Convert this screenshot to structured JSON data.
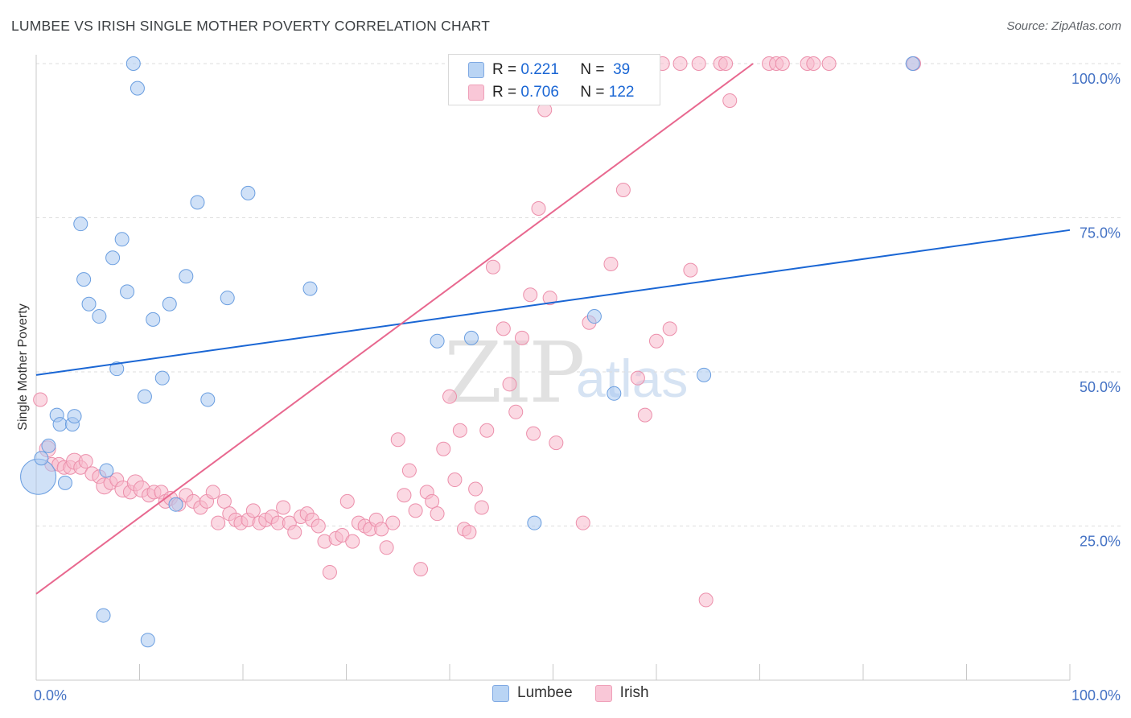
{
  "header": {
    "title": "LUMBEE VS IRISH SINGLE MOTHER POVERTY CORRELATION CHART",
    "source": "Source: ZipAtlas.com"
  },
  "legend": {
    "lumbee": {
      "r_label": "R =",
      "r_value": "0.221",
      "n_label": "N =",
      "n_value": "39"
    },
    "irish": {
      "r_label": "R =",
      "r_value": "0.706",
      "n_label": "N =",
      "n_value": "122"
    }
  },
  "bottom_legend": {
    "lumbee": "Lumbee",
    "irish": "Irish"
  },
  "watermark": {
    "zip": "ZIP",
    "atlas": "atlas"
  },
  "colors": {
    "lumbee_fill": "#a9c8f0",
    "lumbee_stroke": "#6a9ee0",
    "lumbee_line": "#1a66d4",
    "irish_fill": "#f7b9cc",
    "irish_stroke": "#ec8fab",
    "irish_line": "#e8688f",
    "tick_text": "#4472c4"
  },
  "chart_data": {
    "type": "scatter",
    "title": "LUMBEE VS IRISH SINGLE MOTHER POVERTY CORRELATION CHART",
    "ylabel": "Single Mother Poverty",
    "xlabel": "",
    "xlim": [
      0,
      100
    ],
    "ylim": [
      0,
      100
    ],
    "x_tick_labels": [
      "0.0%",
      "100.0%"
    ],
    "y_tick_labels": [
      "25.0%",
      "50.0%",
      "75.0%",
      "100.0%"
    ],
    "y_ticks": [
      25,
      50,
      75,
      100
    ],
    "grid": "horizontal dashed",
    "legend_position": "top-center",
    "series": [
      {
        "name": "Lumbee",
        "points": [
          [
            0.2,
            33,
            3
          ],
          [
            0.5,
            36,
            1
          ],
          [
            1.2,
            38,
            1
          ],
          [
            2,
            43,
            1
          ],
          [
            2.3,
            41.5,
            1
          ],
          [
            2.8,
            32,
            1
          ],
          [
            3.5,
            41.5,
            1
          ],
          [
            3.7,
            42.8,
            1
          ],
          [
            4.3,
            74,
            1
          ],
          [
            4.6,
            65,
            1
          ],
          [
            5.1,
            61,
            1
          ],
          [
            6.1,
            59,
            1
          ],
          [
            6.5,
            10.5,
            1
          ],
          [
            6.8,
            34,
            1
          ],
          [
            7.4,
            68.5,
            1
          ],
          [
            7.8,
            50.5,
            1
          ],
          [
            8.3,
            71.5,
            1
          ],
          [
            8.8,
            63,
            1
          ],
          [
            9.4,
            100,
            1
          ],
          [
            9.8,
            96,
            1
          ],
          [
            10.5,
            46,
            1
          ],
          [
            10.8,
            6.5,
            1
          ],
          [
            11.3,
            58.5,
            1
          ],
          [
            12.2,
            49,
            1
          ],
          [
            12.9,
            61,
            1
          ],
          [
            13.5,
            28.5,
            1
          ],
          [
            14.5,
            65.5,
            1
          ],
          [
            15.6,
            77.5,
            1
          ],
          [
            16.6,
            45.5,
            1
          ],
          [
            18.5,
            62,
            1
          ],
          [
            20.5,
            79,
            1
          ],
          [
            26.5,
            63.5,
            1
          ],
          [
            38.8,
            55,
            1
          ],
          [
            42.1,
            55.5,
            1
          ],
          [
            48.2,
            25.5,
            1
          ],
          [
            54,
            59,
            1
          ],
          [
            55.9,
            46.5,
            1
          ],
          [
            64.6,
            49.5,
            1
          ],
          [
            84.8,
            100,
            1
          ]
        ]
      },
      {
        "name": "Irish",
        "points": [
          [
            0.4,
            45.5,
            1
          ],
          [
            1.1,
            37.5,
            2
          ],
          [
            1.5,
            35,
            1
          ],
          [
            2.2,
            35,
            1
          ],
          [
            2.7,
            34.5,
            1
          ],
          [
            3.3,
            34.5,
            1
          ],
          [
            3.7,
            35.5,
            2
          ],
          [
            4.3,
            34.5,
            1
          ],
          [
            4.8,
            35.5,
            1
          ],
          [
            5.4,
            33.5,
            1
          ],
          [
            6.1,
            33,
            1
          ],
          [
            6.6,
            31.5,
            2
          ],
          [
            7.2,
            32,
            1
          ],
          [
            7.8,
            32.5,
            1
          ],
          [
            8.4,
            31,
            2
          ],
          [
            9.1,
            30.5,
            1
          ],
          [
            9.6,
            32,
            2
          ],
          [
            10.2,
            31,
            2
          ],
          [
            10.9,
            30,
            1
          ],
          [
            11.4,
            30.5,
            1
          ],
          [
            12.1,
            30.5,
            1
          ],
          [
            12.5,
            29,
            1
          ],
          [
            13,
            29.5,
            1
          ],
          [
            13.8,
            28.5,
            1
          ],
          [
            14.5,
            30,
            1
          ],
          [
            15.2,
            29,
            1
          ],
          [
            15.9,
            28,
            1
          ],
          [
            16.5,
            29,
            1
          ],
          [
            17.1,
            30.5,
            1
          ],
          [
            17.6,
            25.5,
            1
          ],
          [
            18.2,
            29,
            1
          ],
          [
            18.7,
            27,
            1
          ],
          [
            19.3,
            26,
            1
          ],
          [
            19.8,
            25.5,
            1
          ],
          [
            20.5,
            26,
            1
          ],
          [
            21,
            27.5,
            1
          ],
          [
            21.6,
            25.5,
            1
          ],
          [
            22.2,
            26,
            1
          ],
          [
            22.8,
            26.5,
            1
          ],
          [
            23.4,
            25.5,
            1
          ],
          [
            23.9,
            28,
            1
          ],
          [
            24.5,
            25.5,
            1
          ],
          [
            25,
            24,
            1
          ],
          [
            25.6,
            26.5,
            1
          ],
          [
            26.2,
            27,
            1
          ],
          [
            26.7,
            26,
            1
          ],
          [
            27.3,
            25,
            1
          ],
          [
            27.9,
            22.5,
            1
          ],
          [
            28.4,
            17.5,
            1
          ],
          [
            29,
            23,
            1
          ],
          [
            29.6,
            23.5,
            1
          ],
          [
            30.1,
            29,
            1
          ],
          [
            30.6,
            22.5,
            1
          ],
          [
            31.2,
            25.5,
            1
          ],
          [
            31.8,
            25,
            1
          ],
          [
            32.3,
            24.5,
            1
          ],
          [
            32.9,
            26,
            1
          ],
          [
            33.4,
            24.5,
            1
          ],
          [
            33.9,
            21.5,
            1
          ],
          [
            34.5,
            25.5,
            1
          ],
          [
            35,
            39,
            1
          ],
          [
            35.6,
            30,
            1
          ],
          [
            36.1,
            34,
            1
          ],
          [
            36.7,
            27.5,
            1
          ],
          [
            37.2,
            18,
            1
          ],
          [
            37.8,
            30.5,
            1
          ],
          [
            38.3,
            29,
            1
          ],
          [
            38.8,
            27,
            1
          ],
          [
            39.4,
            37.5,
            1
          ],
          [
            40,
            46,
            1
          ],
          [
            40.5,
            32.5,
            1
          ],
          [
            41,
            40.5,
            1
          ],
          [
            41.4,
            24.5,
            1
          ],
          [
            41.9,
            24,
            1
          ],
          [
            42.5,
            31,
            1
          ],
          [
            43.1,
            28,
            1
          ],
          [
            43.6,
            40.5,
            1
          ],
          [
            44.2,
            67,
            1
          ],
          [
            45.2,
            57,
            1
          ],
          [
            45.8,
            48,
            1
          ],
          [
            46.4,
            43.5,
            1
          ],
          [
            47,
            55.5,
            1
          ],
          [
            47.8,
            62.5,
            1
          ],
          [
            48.1,
            40,
            1
          ],
          [
            48.6,
            76.5,
            1
          ],
          [
            49.2,
            92.5,
            1
          ],
          [
            49.7,
            62,
            1
          ],
          [
            50.3,
            38.5,
            1
          ],
          [
            50.8,
            100,
            1
          ],
          [
            51.4,
            100,
            1
          ],
          [
            51.9,
            100,
            1
          ],
          [
            52.4,
            100,
            1
          ],
          [
            52.9,
            25.5,
            1
          ],
          [
            53.5,
            58,
            1
          ],
          [
            54,
            100,
            1
          ],
          [
            55.6,
            67.5,
            1
          ],
          [
            56.1,
            100,
            1
          ],
          [
            56.8,
            79.5,
            1
          ],
          [
            57.4,
            100,
            1
          ],
          [
            58.2,
            49,
            1
          ],
          [
            58.9,
            43,
            1
          ],
          [
            59.5,
            100,
            1
          ],
          [
            60,
            55,
            1
          ],
          [
            60.6,
            100,
            1
          ],
          [
            61.3,
            57,
            1
          ],
          [
            62.3,
            100,
            1
          ],
          [
            63.3,
            66.5,
            1
          ],
          [
            64.1,
            100,
            1
          ],
          [
            64.8,
            13,
            1
          ],
          [
            66.2,
            100,
            1
          ],
          [
            66.7,
            100,
            1
          ],
          [
            67.1,
            94,
            1
          ],
          [
            70.9,
            100,
            1
          ],
          [
            71.6,
            100,
            1
          ],
          [
            72.2,
            100,
            1
          ],
          [
            74.6,
            100,
            1
          ],
          [
            75.2,
            100,
            1
          ],
          [
            76.7,
            100,
            1
          ],
          [
            84.9,
            100,
            1
          ]
        ]
      }
    ],
    "trendlines": [
      {
        "name": "Lumbee",
        "x": [
          0,
          100
        ],
        "y": [
          49.5,
          73
        ]
      },
      {
        "name": "Irish",
        "x": [
          0,
          100
        ],
        "y": [
          14,
          138
        ]
      }
    ]
  }
}
